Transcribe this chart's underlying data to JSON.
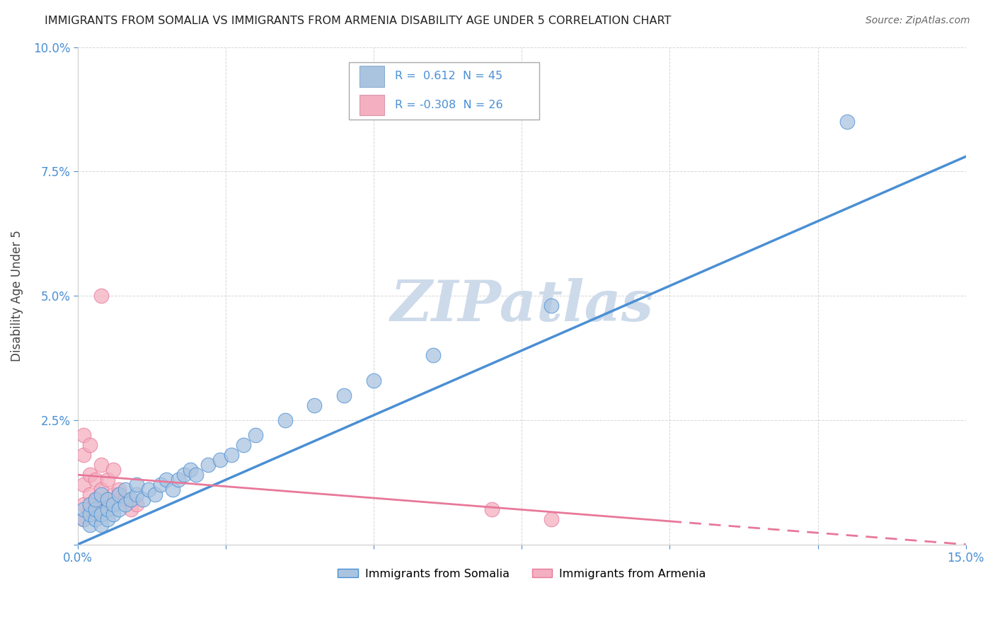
{
  "title": "IMMIGRANTS FROM SOMALIA VS IMMIGRANTS FROM ARMENIA DISABILITY AGE UNDER 5 CORRELATION CHART",
  "source": "Source: ZipAtlas.com",
  "ylabel": "Disability Age Under 5",
  "xlim": [
    0.0,
    0.15
  ],
  "ylim": [
    0.0,
    0.1
  ],
  "somalia_R": 0.612,
  "somalia_N": 45,
  "armenia_R": -0.308,
  "armenia_N": 26,
  "somalia_color": "#aac4e0",
  "armenia_color": "#f4afc0",
  "somalia_line_color": "#4a8fd4",
  "armenia_line_color": "#e8789a",
  "watermark_color": "#cddaea",
  "background_color": "#ffffff",
  "somalia_points": [
    [
      0.001,
      0.005
    ],
    [
      0.001,
      0.007
    ],
    [
      0.002,
      0.004
    ],
    [
      0.002,
      0.006
    ],
    [
      0.002,
      0.008
    ],
    [
      0.003,
      0.005
    ],
    [
      0.003,
      0.007
    ],
    [
      0.003,
      0.009
    ],
    [
      0.004,
      0.004
    ],
    [
      0.004,
      0.006
    ],
    [
      0.004,
      0.01
    ],
    [
      0.005,
      0.005
    ],
    [
      0.005,
      0.007
    ],
    [
      0.005,
      0.009
    ],
    [
      0.006,
      0.006
    ],
    [
      0.006,
      0.008
    ],
    [
      0.007,
      0.007
    ],
    [
      0.007,
      0.01
    ],
    [
      0.008,
      0.008
    ],
    [
      0.008,
      0.011
    ],
    [
      0.009,
      0.009
    ],
    [
      0.01,
      0.01
    ],
    [
      0.01,
      0.012
    ],
    [
      0.011,
      0.009
    ],
    [
      0.012,
      0.011
    ],
    [
      0.013,
      0.01
    ],
    [
      0.014,
      0.012
    ],
    [
      0.015,
      0.013
    ],
    [
      0.016,
      0.011
    ],
    [
      0.017,
      0.013
    ],
    [
      0.018,
      0.014
    ],
    [
      0.019,
      0.015
    ],
    [
      0.02,
      0.014
    ],
    [
      0.022,
      0.016
    ],
    [
      0.024,
      0.017
    ],
    [
      0.026,
      0.018
    ],
    [
      0.028,
      0.02
    ],
    [
      0.03,
      0.022
    ],
    [
      0.035,
      0.025
    ],
    [
      0.04,
      0.028
    ],
    [
      0.045,
      0.03
    ],
    [
      0.05,
      0.033
    ],
    [
      0.06,
      0.038
    ],
    [
      0.08,
      0.048
    ],
    [
      0.13,
      0.085
    ]
  ],
  "armenia_points": [
    [
      0.001,
      0.005
    ],
    [
      0.001,
      0.008
    ],
    [
      0.001,
      0.012
    ],
    [
      0.001,
      0.018
    ],
    [
      0.001,
      0.022
    ],
    [
      0.002,
      0.007
    ],
    [
      0.002,
      0.01
    ],
    [
      0.002,
      0.014
    ],
    [
      0.002,
      0.02
    ],
    [
      0.003,
      0.006
    ],
    [
      0.003,
      0.009
    ],
    [
      0.003,
      0.013
    ],
    [
      0.004,
      0.008
    ],
    [
      0.004,
      0.011
    ],
    [
      0.004,
      0.016
    ],
    [
      0.004,
      0.05
    ],
    [
      0.005,
      0.009
    ],
    [
      0.005,
      0.013
    ],
    [
      0.006,
      0.01
    ],
    [
      0.006,
      0.015
    ],
    [
      0.007,
      0.011
    ],
    [
      0.008,
      0.009
    ],
    [
      0.009,
      0.007
    ],
    [
      0.01,
      0.008
    ],
    [
      0.07,
      0.007
    ],
    [
      0.08,
      0.005
    ]
  ],
  "somalia_trend": [
    0.0,
    0.15,
    0.0,
    0.078
  ],
  "armenia_trend": [
    0.0,
    0.15,
    0.014,
    0.0
  ]
}
